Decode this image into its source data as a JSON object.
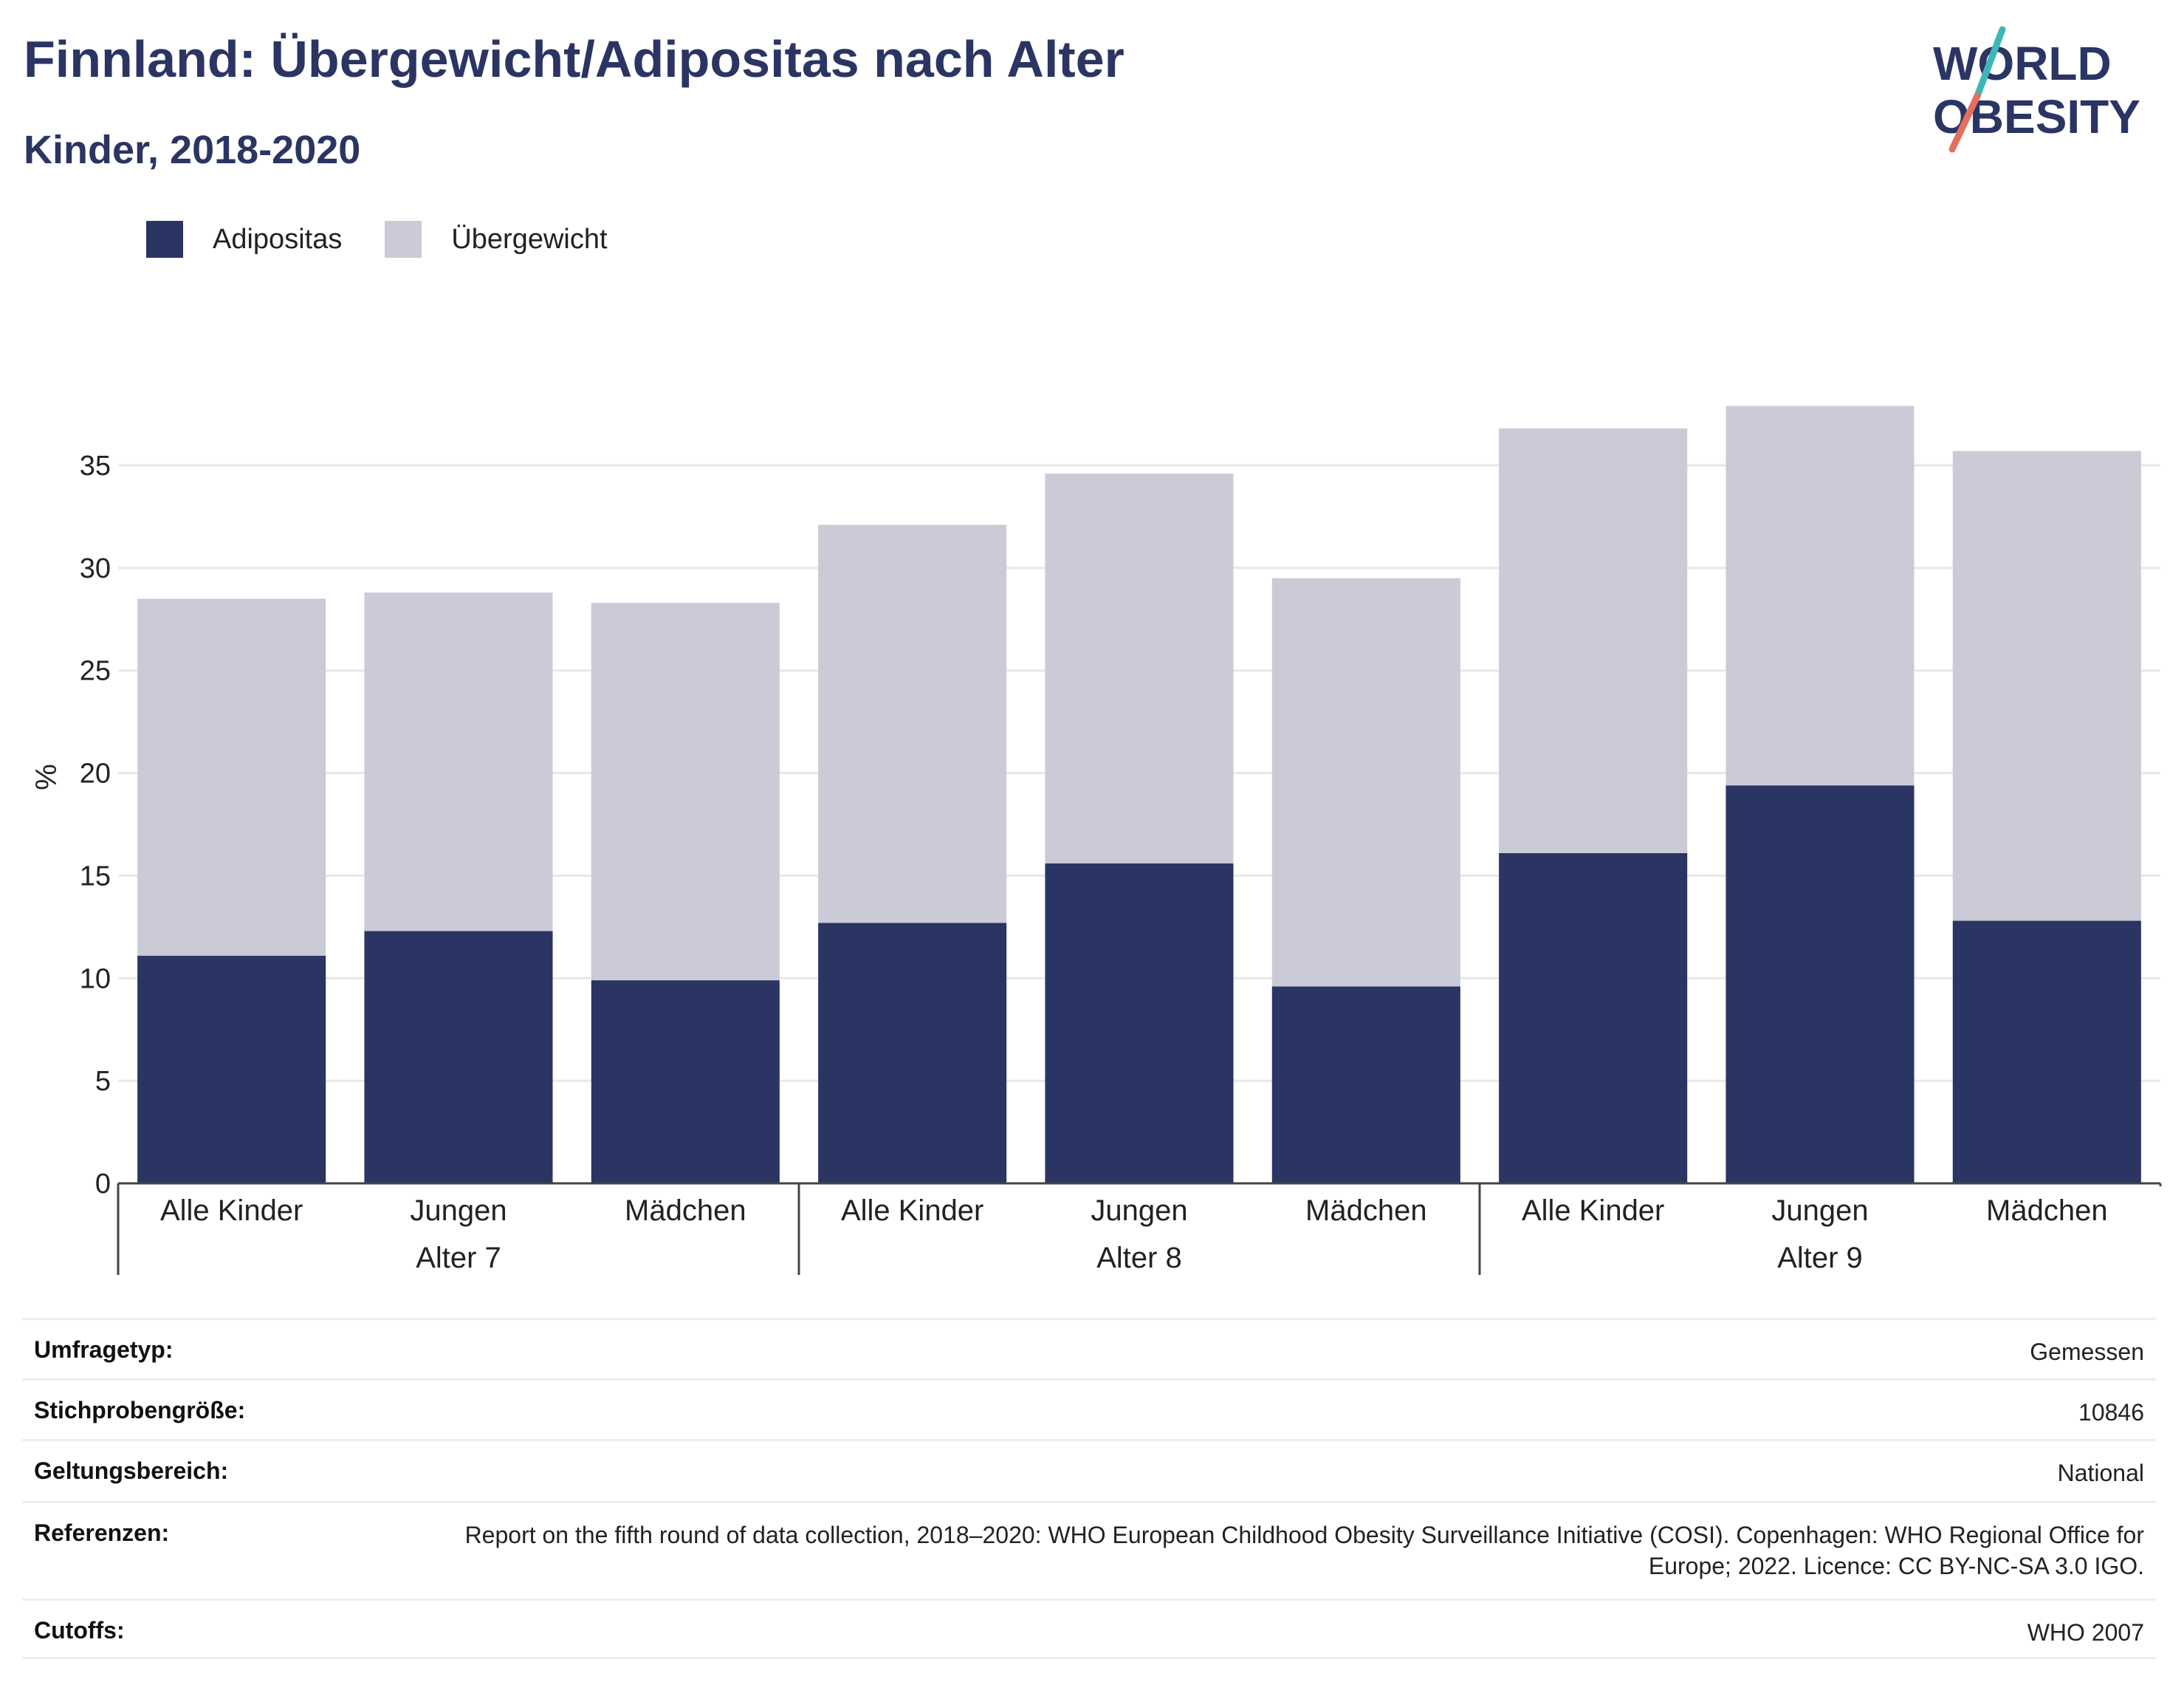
{
  "title": "Finnland: Übergewicht/Adipositas nach Alter",
  "subtitle": "Kinder, 2018-2020",
  "logo": {
    "line1": "WORLD",
    "line2": "OBESITY"
  },
  "colors": {
    "adipositas": "#2a3563",
    "uebergewicht": "#cacbd7",
    "text": "#2a3563",
    "grid": "#e8e8e8",
    "logo_teal": "#3fb6b5",
    "logo_coral": "#e46f5f"
  },
  "chart_data": {
    "type": "bar",
    "stacked": true,
    "ylabel": "%",
    "ylim": [
      0,
      38
    ],
    "yticks": [
      0,
      5,
      10,
      15,
      20,
      25,
      30,
      35
    ],
    "grid": true,
    "legend_position": "top-left",
    "categories": [
      "Alle Kinder",
      "Jungen",
      "Mädchen",
      "Alle Kinder",
      "Jungen",
      "Mädchen",
      "Alle Kinder",
      "Jungen",
      "Mädchen"
    ],
    "groups": [
      {
        "label": "Alter 7",
        "count": 3
      },
      {
        "label": "Alter 8",
        "count": 3
      },
      {
        "label": "Alter 9",
        "count": 3
      }
    ],
    "series": [
      {
        "name": "Adipositas",
        "color": "#2a3563",
        "values": [
          11.1,
          12.3,
          9.9,
          12.7,
          15.6,
          9.6,
          16.1,
          19.4,
          12.8
        ]
      },
      {
        "name": "Übergewicht",
        "color": "#cacbd7",
        "values": [
          17.4,
          16.5,
          18.4,
          19.4,
          19.0,
          19.9,
          20.7,
          18.5,
          22.9
        ]
      }
    ]
  },
  "meta": [
    {
      "label": "Umfragetyp:",
      "value": "Gemessen"
    },
    {
      "label": "Stichprobengröße:",
      "value": "10846"
    },
    {
      "label": "Geltungsbereich:",
      "value": "National"
    },
    {
      "label": "Referenzen:",
      "value": "Report on the fifth round of data collection, 2018–2020: WHO European Childhood Obesity Surveillance Initiative (COSI). Copenhagen: WHO Regional Office for Europe; 2022. Licence: CC BY-NC-SA 3.0 IGO."
    },
    {
      "label": "Cutoffs:",
      "value": "WHO 2007"
    }
  ]
}
